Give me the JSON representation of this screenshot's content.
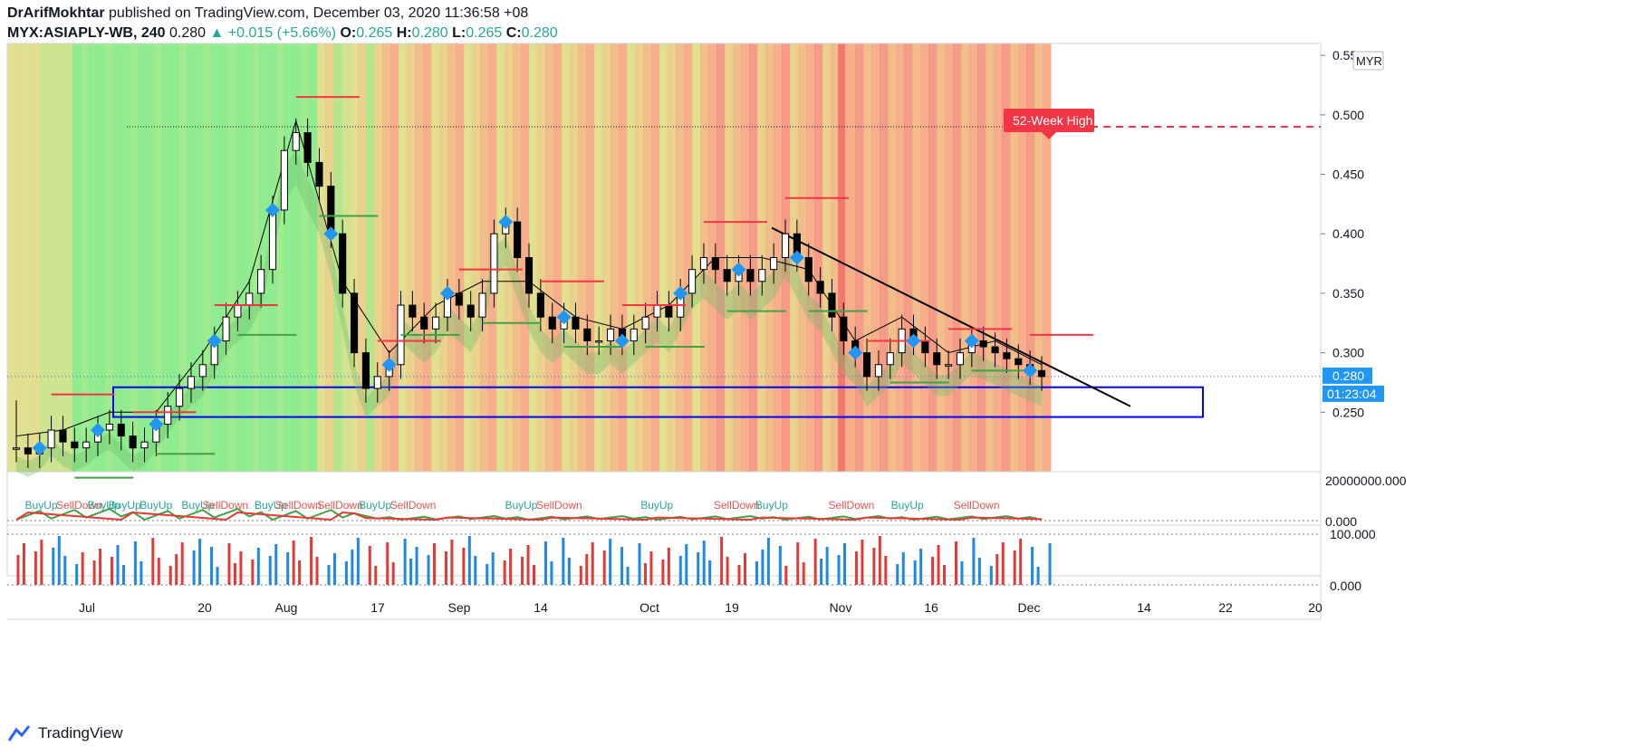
{
  "header": {
    "author": "DrArifMokhtar",
    "published": "published on TradingView.com, December 03, 2020 11:36:58 +08",
    "symbol": "MYX:ASIAPLY-WB, 240",
    "last": "0.280",
    "change": "+0.015 (+5.66%)",
    "o_label": "O:",
    "o": "0.265",
    "h_label": "H:",
    "h": "0.280",
    "l_label": "L:",
    "l": "0.265",
    "c_label": "C:",
    "c": "0.280"
  },
  "footer": {
    "brand": "TradingView"
  },
  "colors": {
    "up": "#26a69a",
    "down": "#000000",
    "red": "#ef5350",
    "green": "#4caf50",
    "blue": "#2962ff",
    "diamond": "#2196f3"
  },
  "chart_data": {
    "type": "candlestick",
    "currency": "MYR",
    "y_ticks": [
      "0.550",
      "0.500",
      "0.450",
      "0.400",
      "0.350",
      "0.300",
      "0.250"
    ],
    "ylim": [
      0.2,
      0.56
    ],
    "x_ticks": [
      "Jul",
      "20",
      "Aug",
      "17",
      "Sep",
      "14",
      "Oct",
      "19",
      "Nov",
      "16",
      "Dec",
      "14",
      "22",
      "20"
    ],
    "price_label": "0.280",
    "countdown_label": "01:23:04",
    "high_52w_label": "52-Week High",
    "high_52w": 0.49,
    "last_price": 0.28,
    "closes": [
      0.22,
      0.215,
      0.22,
      0.235,
      0.225,
      0.22,
      0.225,
      0.235,
      0.24,
      0.23,
      0.22,
      0.225,
      0.24,
      0.255,
      0.27,
      0.28,
      0.29,
      0.31,
      0.33,
      0.34,
      0.35,
      0.37,
      0.42,
      0.47,
      0.485,
      0.46,
      0.44,
      0.4,
      0.35,
      0.3,
      0.27,
      0.28,
      0.29,
      0.34,
      0.33,
      0.32,
      0.33,
      0.35,
      0.34,
      0.33,
      0.35,
      0.4,
      0.41,
      0.38,
      0.35,
      0.33,
      0.32,
      0.33,
      0.32,
      0.31,
      0.31,
      0.32,
      0.31,
      0.32,
      0.33,
      0.34,
      0.33,
      0.35,
      0.37,
      0.38,
      0.37,
      0.36,
      0.37,
      0.36,
      0.37,
      0.38,
      0.4,
      0.38,
      0.36,
      0.35,
      0.33,
      0.31,
      0.3,
      0.28,
      0.29,
      0.3,
      0.32,
      0.31,
      0.3,
      0.29,
      0.29,
      0.3,
      0.31,
      0.305,
      0.3,
      0.295,
      0.29,
      0.285,
      0.28
    ],
    "volume_top_label": "20000000.000",
    "volume_bottom_label": "0.000",
    "osc_top_label": "100.000",
    "osc_bottom_label": "0.000",
    "signal_labels": [
      "BuyUp",
      "SellDown",
      "BuyUp",
      "BuyUp",
      "BuyUp",
      "BuyUp",
      "SellDown",
      "BuyUp",
      "SellDown",
      "SellDown",
      "BuyUp",
      "SellDown",
      "BuyUp",
      "SellDown",
      "BuyUp",
      "SellDown",
      "BuyUp",
      "SellDown",
      "BuyUp",
      "SellDown"
    ],
    "signal_slots": [
      0.01,
      0.04,
      0.07,
      0.09,
      0.12,
      0.16,
      0.18,
      0.23,
      0.25,
      0.29,
      0.33,
      0.36,
      0.47,
      0.5,
      0.6,
      0.67,
      0.71,
      0.78,
      0.84,
      0.9
    ]
  }
}
